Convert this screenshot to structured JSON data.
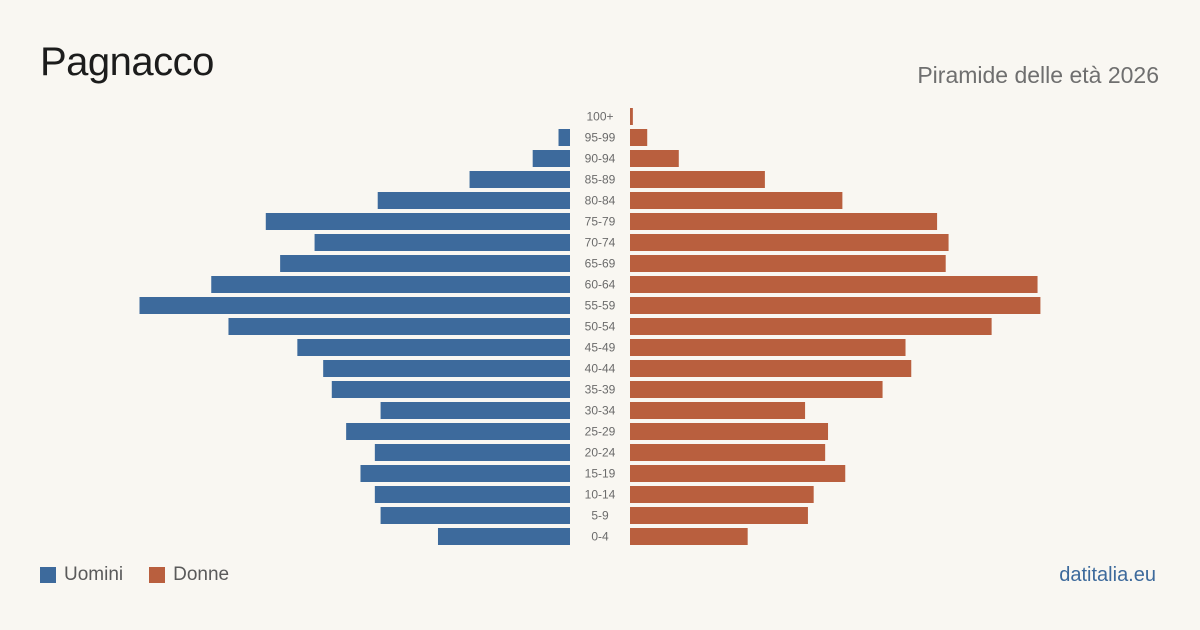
{
  "title": "Pagnacco",
  "subtitle": "Piramide delle età 2026",
  "source": "datitalia.eu",
  "colors": {
    "men": "#3d6a9c",
    "women": "#b95f3e"
  },
  "legend": [
    {
      "label": "Uomini",
      "color": "#3d6a9c"
    },
    {
      "label": "Donne",
      "color": "#b95f3e"
    }
  ],
  "chart_data": {
    "type": "bar",
    "orientation": "horizontal-pyramid",
    "categories": [
      "100+",
      "95-99",
      "90-94",
      "85-89",
      "80-84",
      "75-79",
      "70-74",
      "65-69",
      "60-64",
      "55-59",
      "50-54",
      "45-49",
      "40-44",
      "35-39",
      "30-34",
      "25-29",
      "20-24",
      "15-19",
      "10-14",
      "5-9",
      "0-4"
    ],
    "series": [
      {
        "name": "Uomini",
        "values": [
          0,
          4,
          13,
          35,
          67,
          106,
          89,
          101,
          125,
          150,
          119,
          95,
          86,
          83,
          66,
          78,
          68,
          73,
          68,
          66,
          46
        ]
      },
      {
        "name": "Donne",
        "values": [
          1,
          6,
          17,
          47,
          74,
          107,
          111,
          110,
          142,
          143,
          126,
          96,
          98,
          88,
          61,
          69,
          68,
          75,
          64,
          62,
          41
        ]
      }
    ],
    "legend_position": "bottom-left",
    "grid": false
  }
}
